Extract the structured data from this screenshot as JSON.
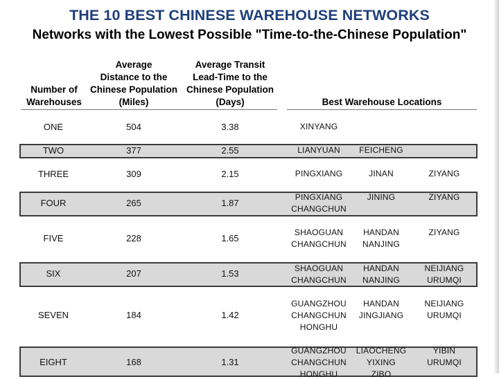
{
  "title": "THE 10 BEST CHINESE WAREHOUSE NETWORKS",
  "subtitle": "Networks with the Lowest Possible \"Time-to-the-Chinese Population\"",
  "headers": {
    "col1": [
      "Number of",
      "Warehouses"
    ],
    "col2": [
      "Average",
      "Distance to the",
      "Chinese Population",
      "(Miles)"
    ],
    "col3": [
      "Average Transit",
      "Lead-Time to the",
      "Chinese Population",
      "(Days)"
    ],
    "col4": [
      "Best Warehouse Locations"
    ]
  },
  "rows": [
    {
      "number": "ONE",
      "distance": "504",
      "days": "3.38",
      "locations": [
        "XINYANG"
      ]
    },
    {
      "number": "TWO",
      "distance": "377",
      "days": "2.55",
      "locations": [
        "LIANYUAN",
        "FEICHENG"
      ]
    },
    {
      "number": "THREE",
      "distance": "309",
      "days": "2.15",
      "locations": [
        "PINGXIANG",
        "JINAN",
        "ZIYANG"
      ]
    },
    {
      "number": "FOUR",
      "distance": "265",
      "days": "1.87",
      "locations": [
        "PINGXIANG",
        "JINING",
        "ZIYANG",
        "CHANGCHUN"
      ]
    },
    {
      "number": "FIVE",
      "distance": "228",
      "days": "1.65",
      "locations": [
        "SHAOGUAN",
        "HANDAN",
        "ZIYANG",
        "CHANGCHUN",
        "NANJING"
      ]
    },
    {
      "number": "SIX",
      "distance": "207",
      "days": "1.53",
      "locations": [
        "SHAOGUAN",
        "HANDAN",
        "NEIJIANG",
        "CHANGCHUN",
        "NANJING",
        "URUMQI"
      ]
    },
    {
      "number": "SEVEN",
      "distance": "184",
      "days": "1.42",
      "locations": [
        "GUANGZHOU",
        "HANDAN",
        "NEIJIANG",
        "CHANGCHUN",
        "JINGJIANG",
        "URUMQI",
        "HONGHU"
      ]
    },
    {
      "number": "EIGHT",
      "distance": "168",
      "days": "1.31",
      "locations": [
        "GUANGZHOU",
        "LIAOCHENG",
        "YIBIN",
        "CHANGCHUN",
        "YIXING",
        "URUMQI",
        "HONGHU",
        "ZIBO"
      ]
    }
  ]
}
